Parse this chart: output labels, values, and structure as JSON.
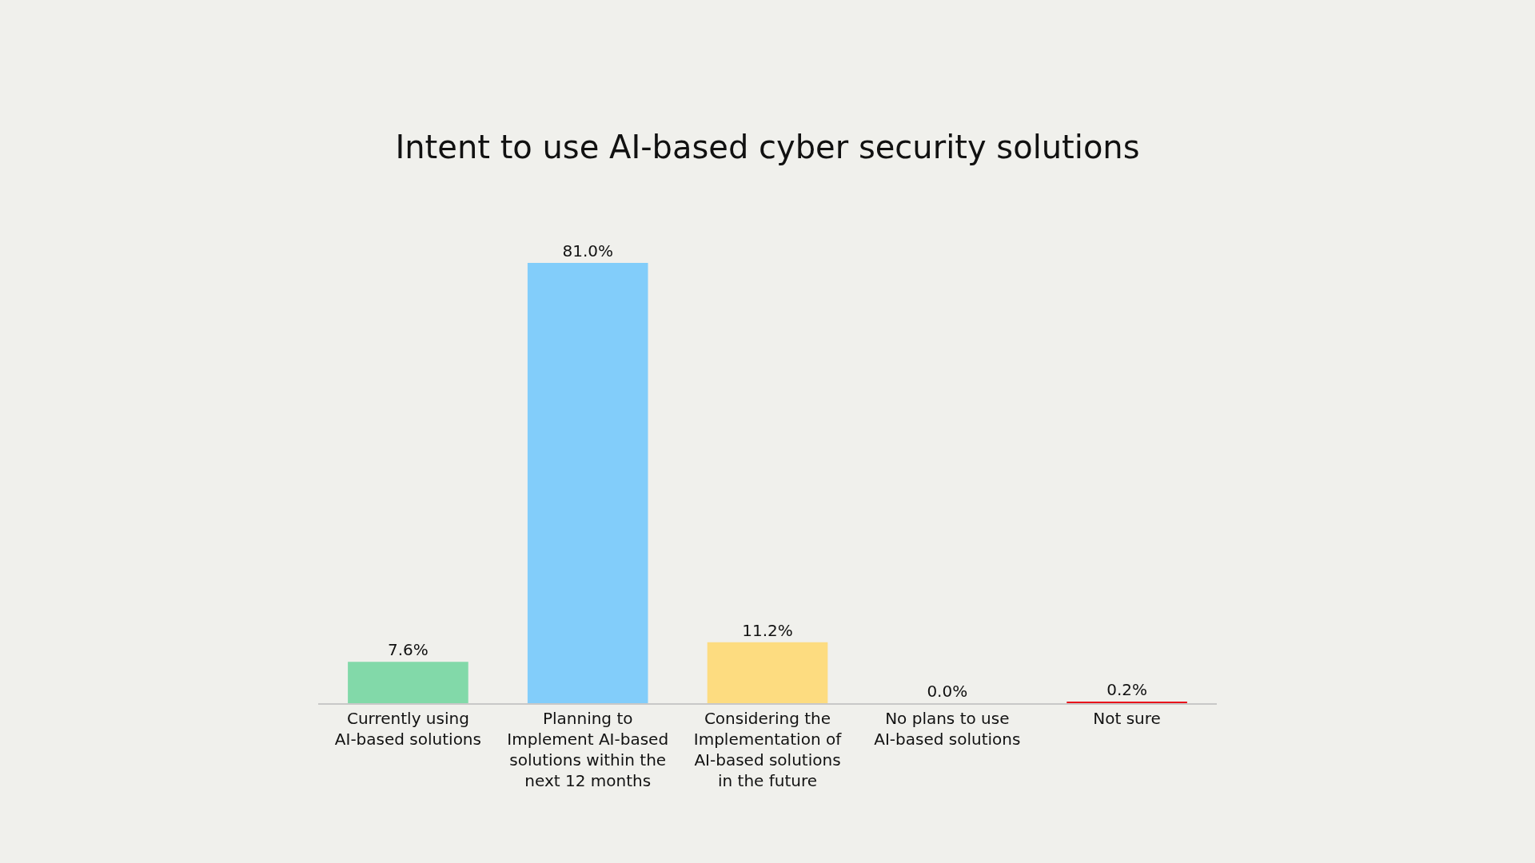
{
  "chart_data": {
    "type": "bar",
    "title": "Intent to use AI-based cyber security solutions",
    "categories": [
      "Currently using AI-based solutions",
      "Planning to Implement AI-based solutions within the next 12 months",
      "Considering the Implementation of AI-based solutions in the future",
      "No plans to use AI-based solutions",
      "Not sure"
    ],
    "values": [
      7.6,
      81.0,
      11.2,
      0.0,
      0.2
    ],
    "value_labels": [
      "7.6%",
      "81.0%",
      "11.2%",
      "0.0%",
      "0.2%"
    ],
    "colors": [
      "#82d9a9",
      "#82cdfa",
      "#fddc80",
      "#b0b0b0",
      "#e8141c"
    ],
    "grid": false,
    "legend": false
  }
}
